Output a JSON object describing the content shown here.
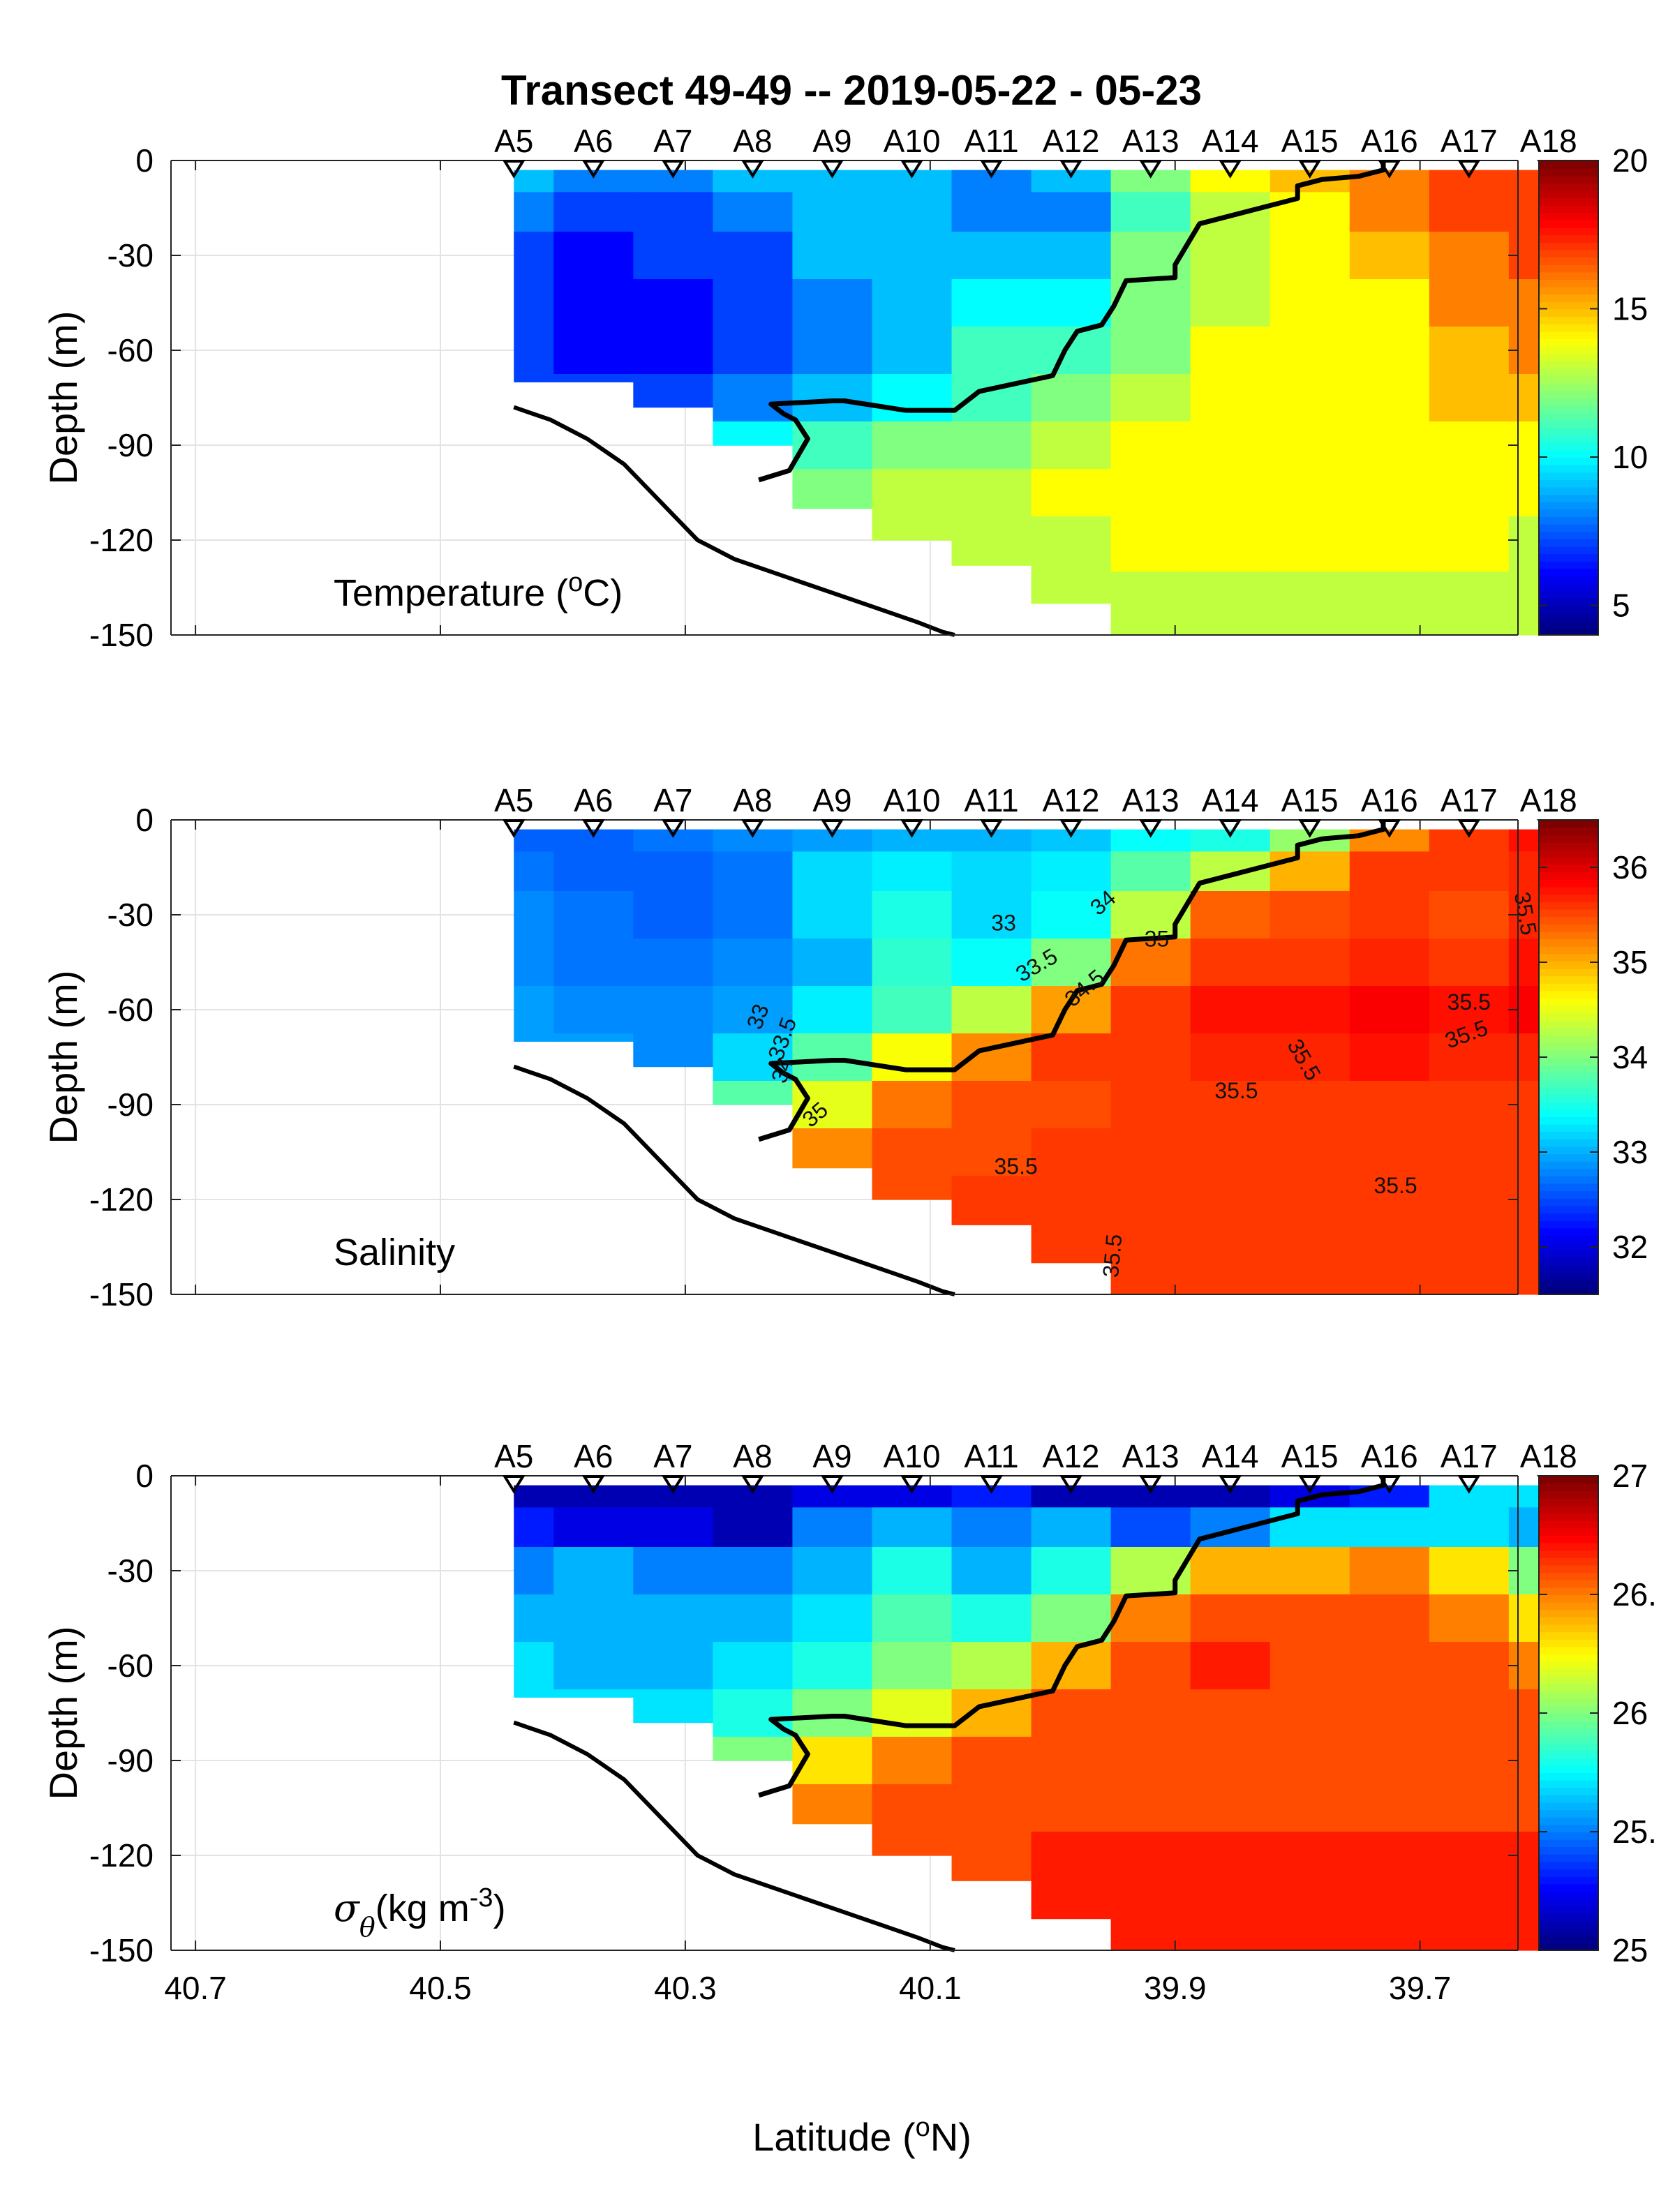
{
  "title": "Transect 49-49 -- 2019-05-22 - 05-23",
  "xlabel": "Latitude (°N)",
  "xlabel_pre": "Latitude (",
  "xlabel_sup": "o",
  "xlabel_post": "N)",
  "ylabel": "Depth (m)",
  "stations": {
    "names": [
      "A5",
      "A6",
      "A7",
      "A8",
      "A9",
      "A10",
      "A11",
      "A12",
      "A13",
      "A14",
      "A15",
      "A16",
      "A17",
      "A18"
    ],
    "latitudes": [
      40.44,
      40.375,
      40.31,
      40.245,
      40.18,
      40.115,
      40.05,
      39.985,
      39.92,
      39.855,
      39.79,
      39.725,
      39.66,
      39.595
    ]
  },
  "panels": [
    {
      "id": "temperature",
      "label_pre": "Temperature (",
      "label_sup": "o",
      "label_post": "C)",
      "label_math": "",
      "colorbar": {
        "min": 4,
        "max": 20,
        "ticks": [
          5,
          10,
          15,
          20
        ],
        "tick_labels": [
          "5",
          "10",
          "15",
          "20"
        ]
      }
    },
    {
      "id": "salinity",
      "label_pre": "Salinity",
      "label_sup": "",
      "label_post": "",
      "label_math": "",
      "colorbar": {
        "min": 31.5,
        "max": 36.5,
        "ticks": [
          32,
          33,
          34,
          35,
          36
        ],
        "tick_labels": [
          "32",
          "33",
          "34",
          "35",
          "36"
        ]
      }
    },
    {
      "id": "density",
      "label_pre": "(kg m",
      "label_sup": "-3",
      "label_post": ")",
      "label_math": "σθ",
      "colorbar": {
        "min": 25,
        "max": 27,
        "ticks": [
          25,
          25.5,
          26,
          26.5,
          27
        ],
        "tick_labels": [
          "25",
          "25.",
          "26",
          "26.",
          "27"
        ]
      }
    }
  ],
  "salinity_contour_labels": [
    {
      "text": "33",
      "lat": 40.04,
      "depth": -35,
      "rot": 0
    },
    {
      "text": "33.5",
      "lat": 40.01,
      "depth": -48,
      "rot": -30
    },
    {
      "text": "34",
      "lat": 39.955,
      "depth": -28,
      "rot": -40
    },
    {
      "text": "35",
      "lat": 39.915,
      "depth": -40,
      "rot": 0
    },
    {
      "text": "34.5",
      "lat": 39.97,
      "depth": -55,
      "rot": -40
    },
    {
      "text": "33",
      "lat": 40.235,
      "depth": -63,
      "rot": -70
    },
    {
      "text": "33.5",
      "lat": 40.215,
      "depth": -70,
      "rot": -70
    },
    {
      "text": "34",
      "lat": 40.215,
      "depth": -80,
      "rot": -70
    },
    {
      "text": "35",
      "lat": 40.19,
      "depth": -95,
      "rot": -40
    },
    {
      "text": "35.5",
      "lat": 39.85,
      "depth": -88,
      "rot": 0
    },
    {
      "text": "35.5",
      "lat": 39.8,
      "depth": -77,
      "rot": 60
    },
    {
      "text": "35.5",
      "lat": 39.66,
      "depth": -60,
      "rot": 0
    },
    {
      "text": "35.5",
      "lat": 39.66,
      "depth": -70,
      "rot": -20
    },
    {
      "text": "35.5",
      "lat": 39.62,
      "depth": -30,
      "rot": 80
    },
    {
      "text": "35.5",
      "lat": 40.03,
      "depth": -112,
      "rot": 0
    },
    {
      "text": "35.5",
      "lat": 39.72,
      "depth": -118,
      "rot": 0
    },
    {
      "text": "35.5",
      "lat": 39.945,
      "depth": -138,
      "rot": -85
    }
  ],
  "chart_data": {
    "type": "heatmap",
    "title": "Transect 49-49 -- 2019-05-22 - 05-23",
    "xlabel": "Latitude (°N)",
    "ylabel": "Depth (m)",
    "xlim": [
      39.62,
      40.72
    ],
    "ylim": [
      -150,
      0
    ],
    "xreverse": true,
    "xticks": [
      40.7,
      40.5,
      40.3,
      40.1,
      39.9,
      39.7
    ],
    "xtick_labels": [
      "40.7",
      "40.5",
      "40.3",
      "40.1",
      "39.9",
      "39.7"
    ],
    "yticks": [
      0,
      -30,
      -60,
      -90,
      -120,
      -150
    ],
    "ytick_labels": [
      "0",
      "-30",
      "-60",
      "-90",
      "-120",
      "-150"
    ],
    "grid": true,
    "station_max_depth": [
      -70,
      -70,
      -78,
      -90,
      -110,
      -120,
      -128,
      -140,
      -150,
      -150,
      -150,
      -150,
      -150,
      -150
    ],
    "bottom_profile": {
      "latitudes": [
        40.44,
        40.41,
        40.38,
        40.35,
        40.32,
        40.29,
        40.26,
        40.23,
        40.2,
        40.17,
        40.14,
        40.11,
        40.09,
        40.08
      ],
      "depths": [
        -78,
        -82,
        -88,
        -96,
        -108,
        -120,
        -126,
        -130,
        -134,
        -138,
        -142,
        -146,
        -149,
        -152
      ]
    },
    "front_line": {
      "latitudes": [
        40.24,
        40.215,
        40.2,
        40.21,
        40.22,
        40.23,
        40.18,
        40.17,
        40.12,
        40.08,
        40.06,
        40.0,
        39.99,
        39.98,
        39.96,
        39.95,
        39.94,
        39.9,
        39.9,
        39.88,
        39.83,
        39.8,
        39.8,
        39.78,
        39.75,
        39.73,
        39.73
      ],
      "depths": [
        -101,
        -98,
        -88,
        -82,
        -80,
        -77,
        -76,
        -76,
        -79,
        -79,
        -73,
        -68,
        -60,
        -54,
        -52,
        -46,
        -38,
        -37,
        -33,
        -20,
        -15,
        -12,
        -8,
        -6,
        -5,
        -3,
        0
      ]
    },
    "series": [
      {
        "name": "Temperature",
        "unit": "°C",
        "clim": [
          4,
          20
        ],
        "values": [
          [
            9,
            8,
            8,
            9,
            9,
            9,
            8,
            9,
            12,
            14,
            15,
            16,
            17,
            17
          ],
          [
            8,
            7,
            7,
            8,
            9,
            9,
            8,
            8,
            11,
            13,
            14,
            16,
            17,
            17
          ],
          [
            7,
            6,
            7,
            7,
            9,
            9,
            9,
            9,
            12,
            13,
            14,
            15,
            16,
            17
          ],
          [
            7,
            6,
            6,
            7,
            8,
            9,
            10,
            10,
            12,
            13,
            14,
            14,
            16,
            16
          ],
          [
            7,
            6,
            6,
            7,
            8,
            9,
            11,
            11,
            12,
            14,
            14,
            14,
            15,
            16
          ],
          [
            7,
            7,
            7,
            8,
            9,
            10,
            11,
            12,
            13,
            14,
            14,
            14,
            15,
            15
          ],
          [
            8,
            8,
            8,
            10,
            11,
            12,
            12,
            13,
            14,
            14,
            14,
            14,
            14,
            14
          ],
          [
            0,
            0,
            9,
            11,
            12,
            13,
            13,
            14,
            14,
            14,
            14,
            14,
            14,
            14
          ],
          [
            0,
            0,
            0,
            12,
            13,
            13,
            13,
            13,
            14,
            14,
            14,
            14,
            14,
            13
          ],
          [
            0,
            0,
            0,
            0,
            13,
            13,
            13,
            13,
            13,
            13,
            13,
            13,
            13,
            13
          ]
        ]
      },
      {
        "name": "Salinity",
        "unit": "",
        "clim": [
          31.5,
          36.5
        ],
        "values": [
          [
            32.6,
            32.6,
            32.7,
            32.8,
            32.9,
            33.0,
            33.0,
            33.1,
            33.4,
            33.5,
            34.1,
            35.2,
            35.6,
            35.8
          ],
          [
            32.7,
            32.6,
            32.6,
            32.7,
            33.2,
            33.3,
            33.2,
            33.3,
            33.8,
            34.3,
            35.0,
            35.6,
            35.6,
            35.7
          ],
          [
            32.8,
            32.7,
            32.6,
            32.7,
            33.2,
            33.5,
            33.2,
            33.4,
            34.3,
            35.4,
            35.5,
            35.6,
            35.5,
            35.7
          ],
          [
            32.8,
            32.7,
            32.7,
            32.8,
            33.0,
            33.6,
            33.4,
            34.0,
            35.3,
            35.6,
            35.6,
            35.7,
            35.6,
            35.8
          ],
          [
            32.9,
            32.8,
            32.8,
            32.9,
            33.3,
            33.7,
            34.3,
            35.1,
            35.6,
            35.8,
            35.8,
            35.9,
            35.8,
            35.9
          ],
          [
            32.9,
            32.9,
            32.8,
            33.2,
            33.8,
            34.6,
            35.2,
            35.6,
            35.6,
            35.7,
            35.7,
            35.8,
            35.7,
            35.7
          ],
          [
            33.2,
            33.2,
            33.5,
            33.8,
            34.5,
            35.3,
            35.5,
            35.5,
            35.6,
            35.6,
            35.6,
            35.6,
            35.6,
            35.6
          ],
          [
            0,
            0,
            33.8,
            34.6,
            35.2,
            35.5,
            35.5,
            35.6,
            35.6,
            35.6,
            35.6,
            35.6,
            35.6,
            35.6
          ],
          [
            0,
            0,
            0,
            35.0,
            35.4,
            35.5,
            35.6,
            35.6,
            35.6,
            35.6,
            35.6,
            35.6,
            35.6,
            35.6
          ],
          [
            0,
            0,
            0,
            0,
            35.5,
            35.5,
            35.6,
            35.6,
            35.6,
            35.6,
            35.6,
            35.6,
            35.6,
            35.6
          ]
        ]
      },
      {
        "name": "Potential density",
        "unit": "kg m-3",
        "clim": [
          25,
          27
        ],
        "values": [
          [
            25.1,
            25.1,
            25.1,
            25.1,
            25.2,
            25.2,
            25.3,
            25.1,
            25.1,
            25.1,
            25.2,
            25.3,
            25.7,
            25.7
          ],
          [
            25.3,
            25.2,
            25.2,
            25.1,
            25.5,
            25.6,
            25.5,
            25.6,
            25.4,
            25.5,
            25.7,
            25.7,
            25.7,
            25.6
          ],
          [
            25.5,
            25.6,
            25.5,
            25.5,
            25.6,
            25.8,
            25.6,
            25.8,
            26.1,
            26.4,
            26.4,
            26.5,
            26.3,
            26.0
          ],
          [
            25.6,
            25.6,
            25.6,
            25.6,
            25.7,
            25.9,
            25.8,
            26.0,
            26.5,
            26.6,
            26.6,
            26.6,
            26.5,
            26.3
          ],
          [
            25.7,
            25.6,
            25.6,
            25.7,
            25.8,
            26.0,
            26.1,
            26.4,
            26.6,
            26.7,
            26.6,
            26.6,
            26.6,
            26.5
          ],
          [
            25.7,
            25.7,
            25.7,
            25.8,
            26.0,
            26.2,
            26.4,
            26.6,
            26.6,
            26.6,
            26.6,
            26.6,
            26.6,
            26.6
          ],
          [
            25.8,
            25.8,
            25.8,
            26.0,
            26.3,
            26.5,
            26.6,
            26.6,
            26.6,
            26.6,
            26.6,
            26.6,
            26.6,
            26.6
          ],
          [
            0,
            0,
            25.9,
            26.3,
            26.5,
            26.6,
            26.6,
            26.6,
            26.6,
            26.6,
            26.6,
            26.6,
            26.6,
            26.6
          ],
          [
            0,
            0,
            0,
            26.5,
            26.6,
            26.6,
            26.6,
            26.7,
            26.7,
            26.7,
            26.7,
            26.7,
            26.7,
            26.7
          ],
          [
            0,
            0,
            0,
            0,
            26.6,
            26.6,
            26.7,
            26.7,
            26.7,
            26.7,
            26.7,
            26.7,
            26.7,
            26.7
          ]
        ]
      }
    ],
    "depth_rows": [
      -5,
      -15,
      -30,
      -45,
      -60,
      -75,
      -90,
      -105,
      -120,
      -140
    ]
  }
}
